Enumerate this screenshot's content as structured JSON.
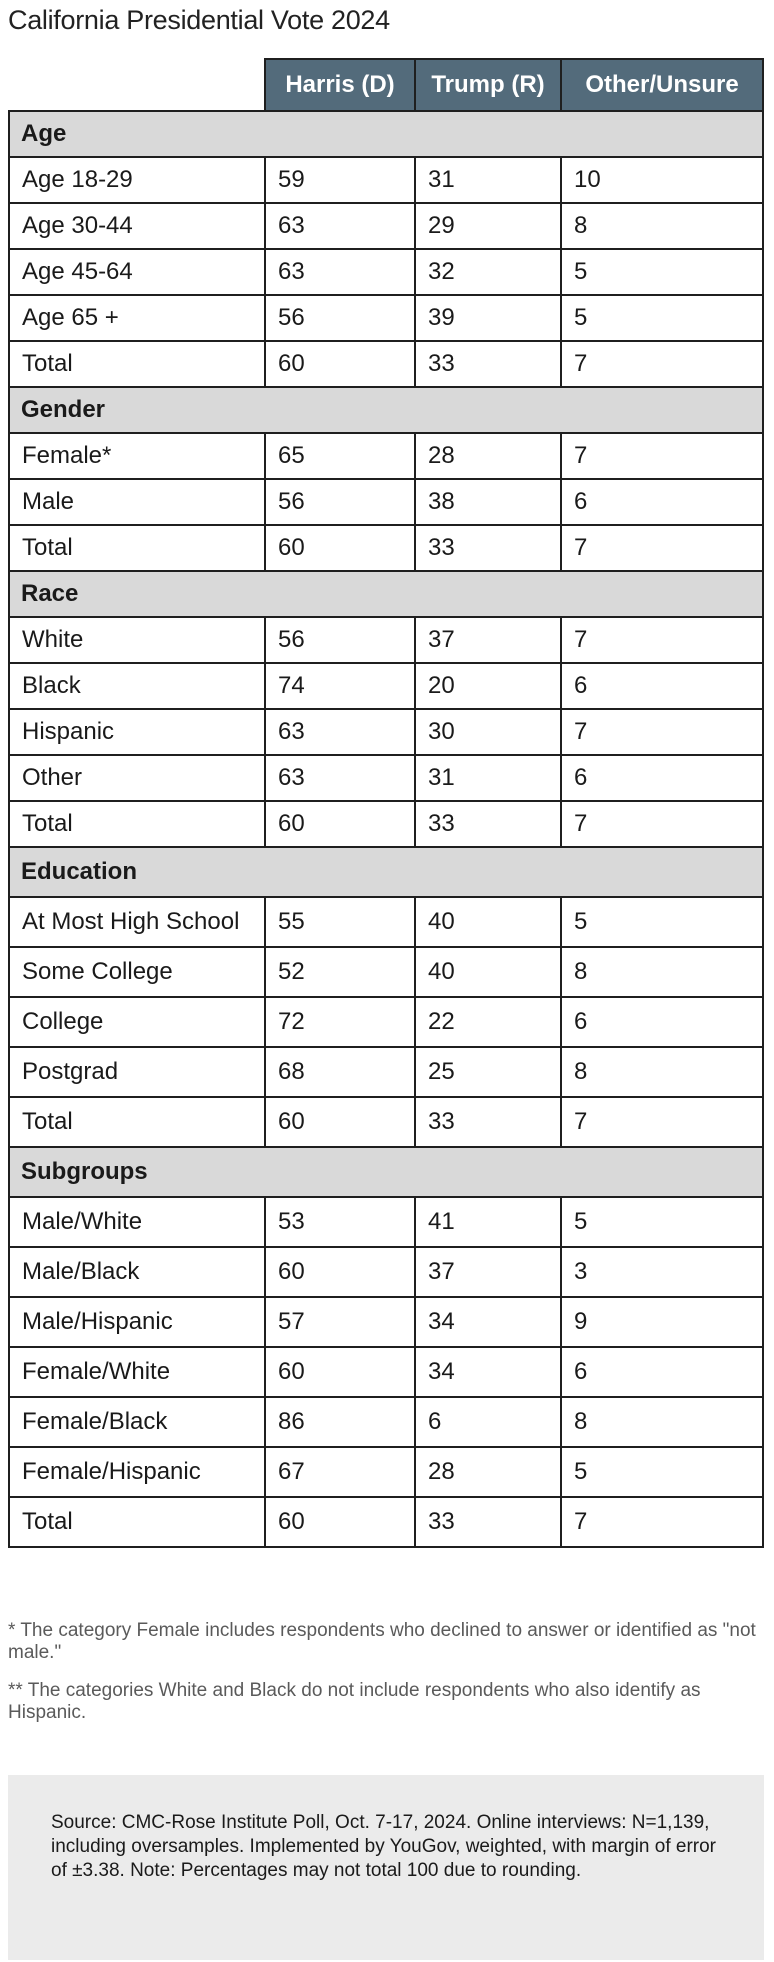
{
  "title": "California Presidential Vote 2024",
  "chart_data": {
    "type": "table",
    "title": "California Presidential Vote 2024",
    "columns": [
      "Harris (D)",
      "Trump (R)",
      "Other/Unsure"
    ],
    "sections": [
      {
        "name": "Age",
        "rows": [
          {
            "label": "Age 18-29",
            "values": [
              "59",
              "31",
              "10"
            ]
          },
          {
            "label": "Age 30-44",
            "values": [
              "63",
              "29",
              "8"
            ]
          },
          {
            "label": "Age 45-64",
            "values": [
              "63",
              "32",
              "5"
            ]
          },
          {
            "label": "Age 65 +",
            "values": [
              "56",
              "39",
              "5"
            ]
          },
          {
            "label": "Total",
            "values": [
              "60",
              "33",
              "7"
            ]
          }
        ]
      },
      {
        "name": "Gender",
        "rows": [
          {
            "label": "Female*",
            "values": [
              "65",
              "28",
              "7"
            ]
          },
          {
            "label": "Male",
            "values": [
              "56",
              "38",
              "6"
            ]
          },
          {
            "label": "Total",
            "values": [
              "60",
              "33",
              "7"
            ]
          }
        ]
      },
      {
        "name": "Race",
        "rows": [
          {
            "label": "White",
            "values": [
              "56",
              "37",
              "7"
            ]
          },
          {
            "label": "Black",
            "values": [
              "74",
              "20",
              "6"
            ]
          },
          {
            "label": "Hispanic",
            "values": [
              "63",
              "30",
              "7"
            ]
          },
          {
            "label": "Other",
            "values": [
              "63",
              "31",
              "6"
            ]
          },
          {
            "label": "Total",
            "values": [
              "60",
              "33",
              "7"
            ]
          }
        ]
      },
      {
        "name": "Education",
        "rows": [
          {
            "label": "At Most High School",
            "values": [
              "55",
              "40",
              "5"
            ]
          },
          {
            "label": "Some College",
            "values": [
              "52",
              "40",
              "8"
            ]
          },
          {
            "label": "College",
            "values": [
              "72",
              "22",
              "6"
            ]
          },
          {
            "label": "Postgrad",
            "values": [
              "68",
              "25",
              "8"
            ]
          },
          {
            "label": "Total",
            "values": [
              "60",
              "33",
              "7"
            ]
          }
        ]
      },
      {
        "name": "Subgroups",
        "rows": [
          {
            "label": "Male/White",
            "values": [
              "53",
              "41",
              "5"
            ]
          },
          {
            "label": "Male/Black",
            "values": [
              "60",
              "37",
              "3"
            ]
          },
          {
            "label": "Male/Hispanic",
            "values": [
              "57",
              "34",
              "9"
            ]
          },
          {
            "label": "Female/White",
            "values": [
              "60",
              "34",
              "6"
            ]
          },
          {
            "label": "Female/Black",
            "values": [
              "86",
              "6",
              "8"
            ]
          },
          {
            "label": "Female/Hispanic",
            "values": [
              "67",
              "28",
              "5"
            ]
          },
          {
            "label": "Total",
            "values": [
              "60",
              "33",
              "7"
            ]
          }
        ]
      }
    ]
  },
  "notes": [
    "* The category Female includes respondents who declined to answer or identified as \"not male.\"",
    "** The categories White and Black do not include respondents who also identify as Hispanic."
  ],
  "source": "Source: CMC-Rose Institute Poll, Oct. 7-17, 2024. Online interviews: N=1,139, including oversamples. Implemented by YouGov, weighted, with margin of error of ±3.38. Note: Percentages may not total 100 due to rounding.",
  "colors": {
    "header_background": "#536b7b",
    "section_background": "#d9d9d9",
    "source_background": "#ebebeb",
    "border": "#1f1f1f"
  }
}
